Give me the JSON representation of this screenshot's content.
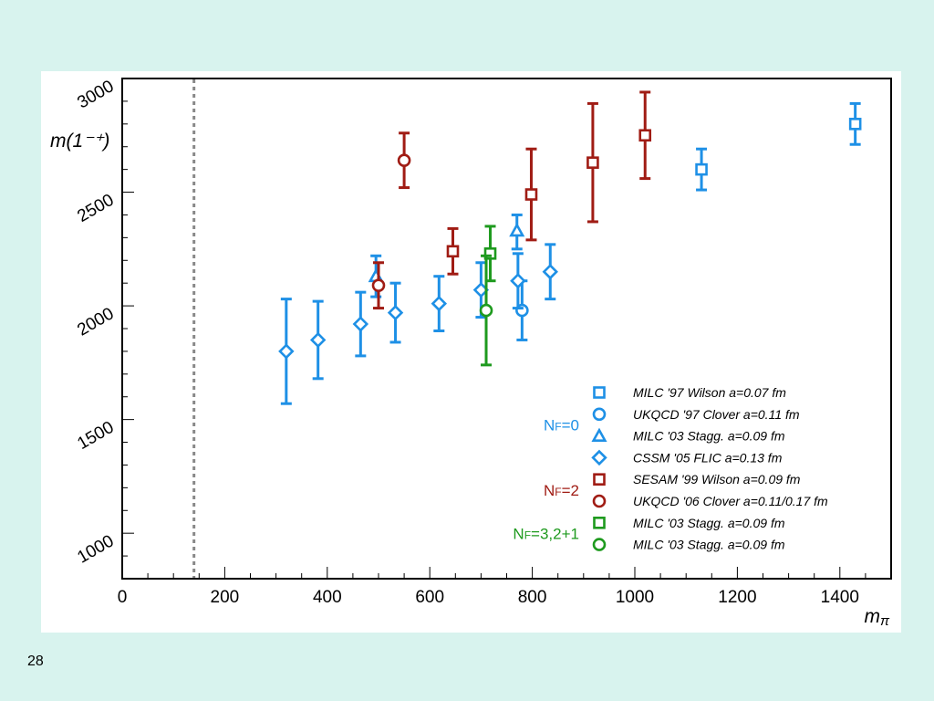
{
  "page": {
    "number": "28"
  },
  "chart_data": {
    "type": "scatter",
    "title": "",
    "xlabel": "mπ",
    "ylabel": "m(1⁻⁺)",
    "xlim": [
      0,
      1500
    ],
    "ylim": [
      800,
      3000
    ],
    "x_ticks": [
      0,
      200,
      400,
      600,
      800,
      1000,
      1200,
      1400
    ],
    "y_ticks": [
      1000,
      1500,
      2000,
      2500,
      3000
    ],
    "vline_x": 140,
    "vline_style": "dotted grey",
    "grid": false,
    "legend_position": "bottom-right",
    "colors": {
      "nf0": "#1e90e6",
      "nf2": "#a01c14",
      "nf3": "#1e9a1e"
    },
    "groups": [
      {
        "label": "NF=0",
        "color": "#1e90e6",
        "series": [
          0,
          1,
          2,
          3
        ]
      },
      {
        "label": "NF=2",
        "color": "#a01c14",
        "series": [
          4,
          5
        ]
      },
      {
        "label": "NF=3,2+1",
        "color": "#1e9a1e",
        "series": [
          6,
          7
        ]
      }
    ],
    "series": [
      {
        "name": "MILC '97 Wilson a=0.07 fm",
        "marker": "square",
        "color": "#1e90e6",
        "points": [
          {
            "x": 1130,
            "y": 2600,
            "lo": 2510,
            "hi": 2690
          },
          {
            "x": 1430,
            "y": 2800,
            "lo": 2710,
            "hi": 2890
          }
        ]
      },
      {
        "name": "UKQCD '97 Clover a=0.11 fm",
        "marker": "circle",
        "color": "#1e90e6",
        "points": [
          {
            "x": 780,
            "y": 1980,
            "lo": 1850,
            "hi": 2110
          }
        ]
      },
      {
        "name": "MILC '03 Stagg. a=0.09 fm",
        "marker": "triangle",
        "color": "#1e90e6",
        "points": [
          {
            "x": 495,
            "y": 2130,
            "lo": 2040,
            "hi": 2220
          },
          {
            "x": 770,
            "y": 2330,
            "lo": 2250,
            "hi": 2400
          }
        ]
      },
      {
        "name": "CSSM '05 FLIC a=0.13 fm",
        "marker": "diamond",
        "color": "#1e90e6",
        "points": [
          {
            "x": 320,
            "y": 1800,
            "lo": 1570,
            "hi": 2030
          },
          {
            "x": 382,
            "y": 1850,
            "lo": 1680,
            "hi": 2020
          },
          {
            "x": 465,
            "y": 1920,
            "lo": 1780,
            "hi": 2060
          },
          {
            "x": 533,
            "y": 1970,
            "lo": 1840,
            "hi": 2100
          },
          {
            "x": 618,
            "y": 2010,
            "lo": 1890,
            "hi": 2130
          },
          {
            "x": 700,
            "y": 2070,
            "lo": 1950,
            "hi": 2190
          },
          {
            "x": 772,
            "y": 2110,
            "lo": 1990,
            "hi": 2230
          },
          {
            "x": 835,
            "y": 2150,
            "lo": 2030,
            "hi": 2270
          }
        ]
      },
      {
        "name": "SESAM '99 Wilson a=0.09 fm",
        "marker": "square",
        "color": "#a01c14",
        "points": [
          {
            "x": 645,
            "y": 2240,
            "lo": 2140,
            "hi": 2340
          },
          {
            "x": 798,
            "y": 2490,
            "lo": 2290,
            "hi": 2690
          },
          {
            "x": 918,
            "y": 2630,
            "lo": 2370,
            "hi": 2890
          },
          {
            "x": 1020,
            "y": 2750,
            "lo": 2560,
            "hi": 2940
          }
        ]
      },
      {
        "name": "UKQCD '06 Clover a=0.11/0.17 fm",
        "marker": "circle",
        "color": "#a01c14",
        "points": [
          {
            "x": 500,
            "y": 2090,
            "lo": 1990,
            "hi": 2190
          },
          {
            "x": 550,
            "y": 2640,
            "lo": 2520,
            "hi": 2760
          }
        ]
      },
      {
        "name": "MILC '03 Stagg. a=0.09 fm",
        "marker": "square",
        "color": "#1e9a1e",
        "points": [
          {
            "x": 718,
            "y": 2230,
            "lo": 2110,
            "hi": 2350
          }
        ]
      },
      {
        "name": "MILC '03 Stagg. a=0.09 fm",
        "marker": "circle",
        "color": "#1e9a1e",
        "points": [
          {
            "x": 710,
            "y": 1980,
            "lo": 1740,
            "hi": 2220
          }
        ]
      }
    ]
  }
}
